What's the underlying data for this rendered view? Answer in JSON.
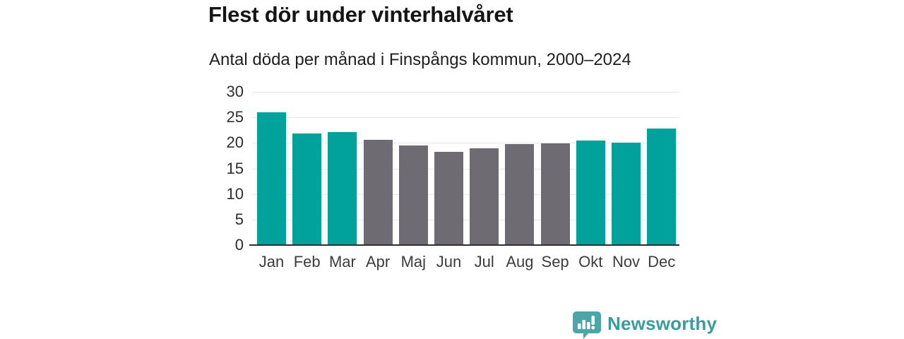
{
  "header": {
    "title": "Flest dör under vinterhalvåret",
    "subtitle": "Antal döda per månad i Finspångs kommun, 2000–2024"
  },
  "chart_data": {
    "type": "bar",
    "title": "Flest dör under vinterhalvåret",
    "subtitle": "Antal döda per månad i Finspångs kommun, 2000–2024",
    "categories": [
      "Jan",
      "Feb",
      "Mar",
      "Apr",
      "Maj",
      "Jun",
      "Jul",
      "Aug",
      "Sep",
      "Okt",
      "Nov",
      "Dec"
    ],
    "values": [
      26.0,
      21.8,
      22.1,
      20.6,
      19.5,
      18.2,
      19.0,
      19.8,
      19.9,
      20.5,
      20.1,
      22.8
    ],
    "highlighted": [
      true,
      true,
      true,
      false,
      false,
      false,
      false,
      false,
      false,
      true,
      true,
      true
    ],
    "xlabel": "",
    "ylabel": "",
    "ylim": [
      0,
      30
    ],
    "yticks": [
      0,
      5,
      10,
      15,
      20,
      25,
      30
    ],
    "grid": true,
    "legend": "none",
    "colors": {
      "highlight": "#00a29b",
      "muted": "#6e6c72",
      "gridline": "#e7e7e7",
      "axis": "#2f2f2f"
    }
  },
  "footer": {
    "brand": "Newsworthy",
    "brand_color": "#3a9c9d",
    "logo_color": "#4ca6a7",
    "logo_icon": "speech-bubble-bar-chart-exclamation"
  }
}
